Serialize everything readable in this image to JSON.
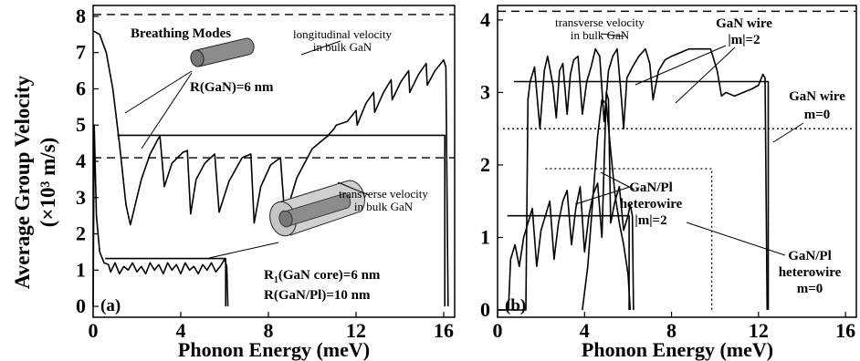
{
  "chart_data": [
    {
      "type": "line",
      "panel_label": "(a)",
      "title": "Breathing Modes",
      "xlabel": "Phonon Energy (meV)",
      "ylabel": "Average Group Velocity",
      "ylabel_unit": "(×10³ m/s)",
      "xlim": [
        0,
        16.5
      ],
      "ylim": [
        -0.3,
        8.3
      ],
      "xticks": [
        "0",
        "4",
        "8",
        "12",
        "16"
      ],
      "yticks": [
        "0",
        "1",
        "2",
        "3",
        "4",
        "5",
        "6",
        "7",
        "8"
      ],
      "reference_lines": [
        {
          "name": "longitudinal velocity in bulk GaN",
          "y": 8.05,
          "style": "dashed"
        },
        {
          "name": "transverse velocity in bulk GaN",
          "y": 4.1,
          "style": "dashed"
        }
      ],
      "series": [
        {
          "name": "R(GaN)=6 nm",
          "style": "solid",
          "x": [
            0,
            0.3,
            0.6,
            0.9,
            1.2,
            1.5,
            1.7,
            2.2,
            2.6,
            2.95,
            3.05,
            3.25,
            3.6,
            4.1,
            4.3,
            4.45,
            4.7,
            5.1,
            5.55,
            5.75,
            6.2,
            6.8,
            7.2,
            7.35,
            7.65,
            8.1,
            8.55,
            8.75,
            9.3,
            10,
            10.7,
            11,
            11.1,
            11.6,
            12,
            12.05,
            12.45,
            12.8,
            12.85,
            13.25,
            13.6,
            13.65,
            14.05,
            14.4,
            14.45,
            14.85,
            15.2,
            15.25,
            15.6,
            16,
            16.1,
            16.2
          ],
          "y": [
            7.6,
            7.5,
            7.0,
            6.0,
            4.5,
            2.8,
            2.25,
            3.5,
            4.2,
            4.6,
            4.7,
            3.3,
            3.95,
            4.25,
            4.3,
            2.55,
            3.5,
            3.95,
            4.2,
            2.6,
            3.45,
            4.1,
            4.2,
            2.3,
            3.3,
            3.9,
            4.1,
            2.45,
            3.55,
            4.35,
            4.7,
            4.9,
            5.0,
            5.1,
            5.4,
            5.0,
            5.6,
            5.9,
            5.35,
            5.9,
            6.25,
            5.7,
            6.2,
            6.5,
            5.9,
            6.4,
            6.7,
            6.1,
            6.5,
            6.8,
            6.6,
            0.0
          ]
        },
        {
          "name": "R(GaN)=6 nm step",
          "style": "solid",
          "x": [
            1.1,
            16.05,
            16.05
          ],
          "y": [
            4.72,
            4.72,
            0.0
          ]
        },
        {
          "name": "R1(GaN core)=6 nm, R(GaN/Pl)=10 nm",
          "style": "solid",
          "x": [
            0,
            0.05,
            0.15,
            0.3,
            0.5,
            0.7,
            0.8,
            1.0,
            1.2,
            1.4,
            1.6,
            1.8,
            2.0,
            2.2,
            2.4,
            2.6,
            2.8,
            3.0,
            3.2,
            3.4,
            3.6,
            3.8,
            4.0,
            4.2,
            4.4,
            4.6,
            4.8,
            5.0,
            5.2,
            5.4,
            5.6,
            5.8,
            6.0,
            6.1,
            6.15
          ],
          "y": [
            0.0,
            5.0,
            2.5,
            1.5,
            1.2,
            1.15,
            0.95,
            1.2,
            0.9,
            1.1,
            1.0,
            1.2,
            0.95,
            1.1,
            0.9,
            1.2,
            1.0,
            1.15,
            0.9,
            1.2,
            1.0,
            1.15,
            0.9,
            1.2,
            1.0,
            1.1,
            0.9,
            1.15,
            1.0,
            1.2,
            0.95,
            1.1,
            1.3,
            1.1,
            0.0
          ]
        },
        {
          "name": "core step",
          "style": "solid",
          "x": [
            0.55,
            6.05,
            6.05
          ],
          "y": [
            1.32,
            1.32,
            0.0
          ]
        }
      ],
      "annotations": [
        "longitudinal velocity",
        "in bulk GaN",
        "transverse velocity",
        "in bulk GaN",
        "R(GaN)=6 nm",
        "R",
        "1",
        "(GaN core)=6 nm",
        "R(GaN/Pl)=10 nm"
      ]
    },
    {
      "type": "line",
      "panel_label": "(b)",
      "xlabel": "Phonon Energy (meV)",
      "xlim": [
        0,
        16.5
      ],
      "ylim": [
        -0.1,
        4.2
      ],
      "xticks": [
        "0",
        "4",
        "8",
        "12",
        "16"
      ],
      "yticks": [
        "0",
        "1",
        "2",
        "3",
        "4"
      ],
      "reference_lines": [
        {
          "name": "transverse velocity in bulk GaN",
          "y": 4.12,
          "style": "dashed"
        }
      ],
      "series": [
        {
          "name": "GaN wire |m|=2",
          "style": "solid",
          "x": [
            0,
            1.3,
            1.4,
            1.5,
            1.7,
            1.95,
            2.15,
            2.3,
            2.55,
            2.7,
            2.85,
            3.0,
            3.2,
            3.35,
            3.5,
            3.7,
            3.9,
            4.1,
            4.3,
            4.5,
            4.7,
            4.9,
            5.1,
            5.3,
            5.5,
            5.7,
            5.8,
            5.95,
            6.2,
            6.5,
            6.8,
            7.0,
            7.15,
            7.4,
            7.7,
            8.0,
            8.4,
            8.8,
            9.3,
            9.8,
            10.1,
            10.3,
            10.5,
            10.9,
            11.3,
            11.7,
            12.0,
            12.2,
            12.3,
            12.4
          ],
          "y": [
            0.0,
            0.0,
            2.9,
            3.15,
            3.35,
            2.5,
            3.3,
            3.5,
            3.1,
            2.65,
            3.3,
            3.4,
            2.7,
            3.25,
            3.45,
            3.5,
            2.7,
            3.15,
            3.35,
            3.6,
            3.5,
            2.6,
            3.3,
            3.5,
            3.6,
            2.9,
            2.5,
            3.2,
            3.35,
            3.5,
            3.6,
            3.4,
            2.9,
            3.3,
            3.45,
            3.5,
            3.55,
            3.6,
            3.6,
            3.6,
            3.3,
            2.95,
            3.0,
            2.95,
            3.0,
            3.05,
            3.1,
            3.25,
            3.2,
            0.0
          ]
        },
        {
          "name": "GaN wire |m|=2 step",
          "style": "solid",
          "x": [
            0.75,
            12.45,
            12.45
          ],
          "y": [
            3.15,
            3.15,
            0.0
          ]
        },
        {
          "name": "GaN wire m=0",
          "style": "dotted",
          "x": [
            0.25,
            16.4
          ],
          "y": [
            2.5,
            2.5
          ]
        },
        {
          "name": "GaN/Pl heterowire |m|=2",
          "style": "solid",
          "x": [
            0,
            0.5,
            0.6,
            0.8,
            1.0,
            1.2,
            1.4,
            1.6,
            1.8,
            2.0,
            2.2,
            2.4,
            2.6,
            2.8,
            3.0,
            3.2,
            3.4,
            3.6,
            3.8,
            4.0,
            4.2,
            4.4,
            4.6,
            4.8,
            5.0,
            5.1,
            5.2,
            5.4,
            5.6,
            5.8,
            6.0,
            6.1,
            6.2,
            6.25
          ],
          "y": [
            0.0,
            0.0,
            0.7,
            0.9,
            0.6,
            1.0,
            1.2,
            1.4,
            0.6,
            1.1,
            1.3,
            1.5,
            0.7,
            1.2,
            1.5,
            1.65,
            0.9,
            1.4,
            1.7,
            0.8,
            1.3,
            1.6,
            1.75,
            1.0,
            3.0,
            2.9,
            1.2,
            1.5,
            1.7,
            1.1,
            1.3,
            1.45,
            1.3,
            0.0
          ]
        },
        {
          "name": "heterowire |m|=2 step",
          "style": "solid",
          "x": [
            0.45,
            6.05,
            6.05
          ],
          "y": [
            1.3,
            1.3,
            0.0
          ]
        },
        {
          "name": "GaN/Pl heterowire m=0",
          "style": "dotted",
          "x": [
            2.2,
            9.85,
            9.85
          ],
          "y": [
            1.95,
            1.95,
            0.0
          ]
        },
        {
          "name": "heterowire m=0 rise",
          "style": "solid",
          "x": [
            3.9,
            4.15,
            4.4,
            4.6,
            4.8,
            5.0,
            5.2,
            5.4,
            5.6,
            5.8,
            6.0,
            6.1
          ],
          "y": [
            0.0,
            0.6,
            1.6,
            2.4,
            2.9,
            2.85,
            2.2,
            1.6,
            1.2,
            0.9,
            0.5,
            0.0
          ]
        }
      ],
      "annotations": [
        "transverse velocity",
        "in bulk GaN",
        "GaN wire",
        "|m|=2",
        "GaN wire",
        "m=0",
        "GaN/Pl",
        "heterowire",
        "|m|=2",
        "GaN/Pl",
        "heterowire",
        "m=0"
      ]
    }
  ]
}
